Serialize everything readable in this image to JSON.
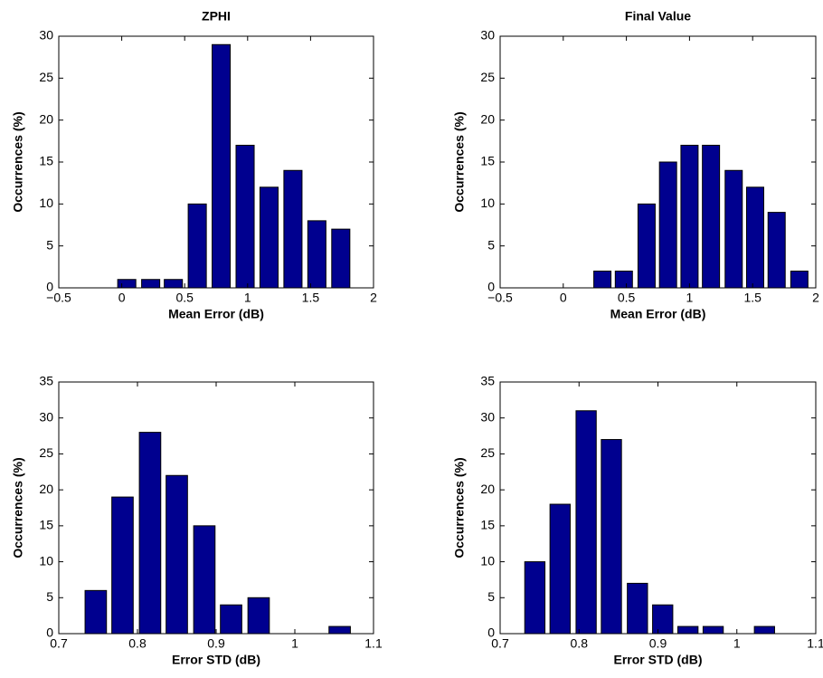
{
  "chart_data": [
    {
      "type": "bar",
      "title": "ZPHI",
      "x_label": "Mean Error (dB)",
      "y_label": "Occurrences (%)",
      "color": "#00008f",
      "x": [
        0.04,
        0.23,
        0.41,
        0.6,
        0.79,
        0.98,
        1.17,
        1.36,
        1.55,
        1.74
      ],
      "values": [
        1,
        1,
        1,
        10,
        29,
        17,
        12,
        14,
        8,
        7
      ],
      "xlim": [
        -0.5,
        2
      ],
      "xticks": [
        {
          "value": -0.5,
          "label": "−0.5"
        },
        0,
        0.5,
        1,
        1.5,
        2
      ],
      "ylim": [
        0,
        30
      ],
      "yticks": [
        0,
        5,
        10,
        15,
        20,
        25,
        30
      ]
    },
    {
      "type": "bar",
      "title": "Final Value",
      "x_label": "Mean Error (dB)",
      "y_label": "Occurrences (%)",
      "color": "#00008f",
      "x": [
        0.31,
        0.48,
        0.66,
        0.83,
        1.0,
        1.17,
        1.35,
        1.52,
        1.69,
        1.87
      ],
      "values": [
        2,
        2,
        10,
        15,
        17,
        17,
        14,
        12,
        9,
        2
      ],
      "xlim": [
        -0.5,
        2
      ],
      "xticks": [
        {
          "value": -0.5,
          "label": "−0.5"
        },
        0,
        0.5,
        1,
        1.5,
        2
      ],
      "ylim": [
        0,
        30
      ],
      "yticks": [
        0,
        5,
        10,
        15,
        20,
        25,
        30
      ]
    },
    {
      "type": "bar",
      "x_label": "Error STD (dB)",
      "y_label": "Occurrences (%)",
      "color": "#00008f",
      "x": [
        0.747,
        0.781,
        0.816,
        0.85,
        0.885,
        0.919,
        0.954,
        0.988,
        1.023,
        1.057
      ],
      "values": [
        6,
        19,
        28,
        22,
        15,
        4,
        5,
        0,
        0,
        1
      ],
      "xlim": [
        0.7,
        1.1
      ],
      "xticks": [
        0.7,
        0.8,
        0.9,
        1,
        1.1
      ],
      "ylim": [
        0,
        35
      ],
      "yticks": [
        0,
        5,
        10,
        15,
        20,
        25,
        30,
        35
      ]
    },
    {
      "type": "bar",
      "x_label": "Error STD (dB)",
      "y_label": "Occurrences (%)",
      "color": "#00008f",
      "x": [
        0.744,
        0.776,
        0.809,
        0.841,
        0.874,
        0.906,
        0.938,
        0.97,
        1.003,
        1.035
      ],
      "values": [
        10,
        18,
        31,
        27,
        7,
        4,
        1,
        1,
        0,
        1
      ],
      "xlim": [
        0.7,
        1.1
      ],
      "xticks": [
        0.7,
        0.8,
        0.9,
        1,
        1.1
      ],
      "ylim": [
        0,
        35
      ],
      "yticks": [
        0,
        5,
        10,
        15,
        20,
        25,
        30,
        35
      ]
    }
  ]
}
